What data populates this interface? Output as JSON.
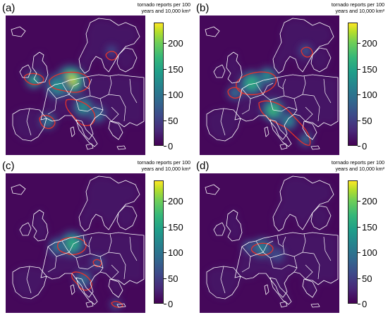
{
  "colorbar": {
    "title_line1": "tornado reports per 100",
    "title_line2": "years and 10,000 km²",
    "ticks": [
      "0",
      "50",
      "100",
      "150",
      "200"
    ],
    "max": 240,
    "colors": [
      "#440154",
      "#3e4989",
      "#26828e",
      "#35b779",
      "#fde725"
    ]
  },
  "contour_color": "#e8322b",
  "border_color": "#ffffff",
  "panels": [
    {
      "letter": "(a)"
    },
    {
      "letter": "(b)"
    },
    {
      "letter": "(c)"
    },
    {
      "letter": "(d)"
    }
  ]
}
